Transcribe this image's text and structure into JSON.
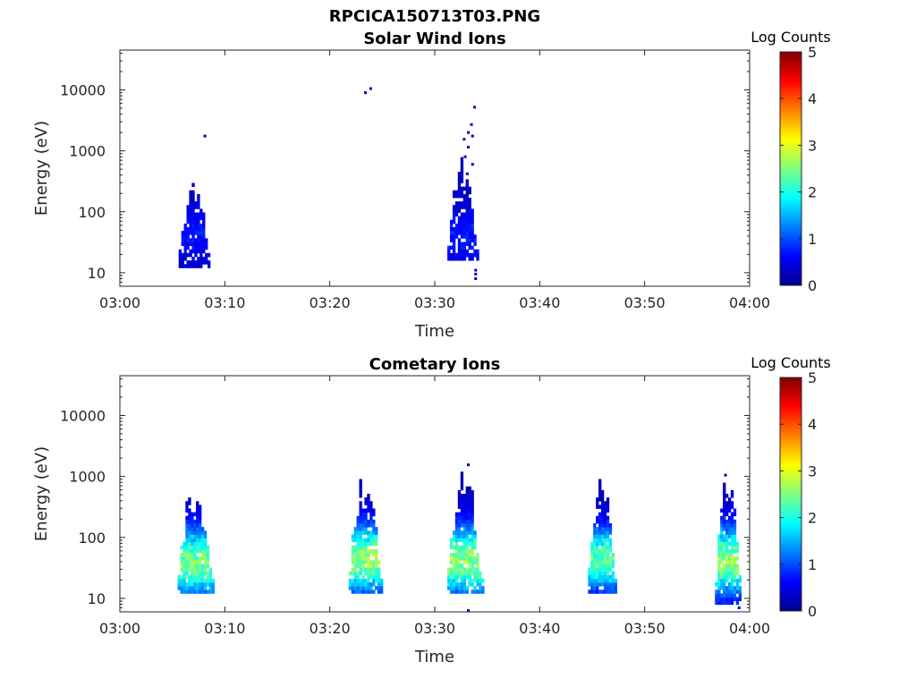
{
  "figure": {
    "title": "RPCICA150713T03.PNG"
  },
  "chart_data": [
    {
      "type": "heatmap",
      "title": "Solar Wind Ions",
      "xlabel": "Time",
      "ylabel": "Energy (eV)",
      "x_range": [
        "03:00",
        "04:00"
      ],
      "x_ticks": [
        "03:00",
        "03:10",
        "03:20",
        "03:30",
        "03:40",
        "03:50",
        "04:00"
      ],
      "y_scale": "log",
      "ylim": [
        6,
        45000
      ],
      "y_ticks": [
        10,
        100,
        1000,
        10000
      ],
      "y_tick_labels": [
        "10",
        "100",
        "1000",
        "10000"
      ],
      "colorbar": {
        "label": "Log Counts",
        "range": [
          0,
          5
        ],
        "ticks": [
          "0",
          "1",
          "2",
          "3",
          "4",
          "5"
        ],
        "colormap": "jet"
      },
      "bursts": [
        {
          "t0": 5.6,
          "t1": 8.6,
          "emin": 12,
          "emax": 280,
          "peak_e": 45,
          "level": 0.45,
          "spread": 0.45,
          "density": 0.85
        },
        {
          "t0": 31.2,
          "t1": 34.0,
          "emin": 17,
          "emax": 600,
          "peak_e": 40,
          "level": 0.45,
          "spread": 0.5,
          "density": 0.85
        }
      ],
      "sparse_points": [
        {
          "t": 8.1,
          "e": 1750,
          "v": 0.3
        },
        {
          "t": 23.4,
          "e": 9000,
          "v": 0.4
        },
        {
          "t": 23.9,
          "e": 10500,
          "v": 0.4
        },
        {
          "t": 33.8,
          "e": 5200,
          "v": 0.3
        },
        {
          "t": 33.5,
          "e": 2700,
          "v": 0.3
        },
        {
          "t": 33.2,
          "e": 2000,
          "v": 0.3
        },
        {
          "t": 33.6,
          "e": 1750,
          "v": 0.3
        },
        {
          "t": 32.8,
          "e": 1550,
          "v": 0.3
        },
        {
          "t": 33.2,
          "e": 1150,
          "v": 0.3
        },
        {
          "t": 32.9,
          "e": 800,
          "v": 0.3
        },
        {
          "t": 33.6,
          "e": 600,
          "v": 0.3
        },
        {
          "t": 32.6,
          "e": 500,
          "v": 0.3
        },
        {
          "t": 33.1,
          "e": 420,
          "v": 0.3
        },
        {
          "t": 33.9,
          "e": 8,
          "v": 0.3
        },
        {
          "t": 33.9,
          "e": 9.5,
          "v": 0.3
        },
        {
          "t": 33.9,
          "e": 11,
          "v": 0.3
        }
      ]
    },
    {
      "type": "heatmap",
      "title": "Cometary Ions",
      "xlabel": "Time",
      "ylabel": "Energy (eV)",
      "x_range": [
        "03:00",
        "04:00"
      ],
      "x_ticks": [
        "03:00",
        "03:10",
        "03:20",
        "03:30",
        "03:40",
        "03:50",
        "04:00"
      ],
      "y_scale": "log",
      "ylim": [
        6,
        45000
      ],
      "y_ticks": [
        10,
        100,
        1000,
        10000
      ],
      "y_tick_labels": [
        "10",
        "100",
        "1000",
        "10000"
      ],
      "colorbar": {
        "label": "Log Counts",
        "range": [
          0,
          5
        ],
        "ticks": [
          "0",
          "1",
          "2",
          "3",
          "4",
          "5"
        ],
        "colormap": "jet"
      },
      "bursts": [
        {
          "t0": 5.5,
          "t1": 8.9,
          "emin": 12,
          "emax": 560,
          "peak_e": 40,
          "level": 2.2,
          "spread": 0.55,
          "density": 0.93
        },
        {
          "t0": 21.8,
          "t1": 25.0,
          "emin": 12,
          "emax": 800,
          "peak_e": 45,
          "level": 2.3,
          "spread": 0.55,
          "density": 0.88
        },
        {
          "t0": 31.2,
          "t1": 34.5,
          "emin": 12,
          "emax": 1100,
          "peak_e": 42,
          "level": 2.3,
          "spread": 0.55,
          "density": 0.88
        },
        {
          "t0": 44.6,
          "t1": 47.2,
          "emin": 12,
          "emax": 900,
          "peak_e": 45,
          "level": 2.1,
          "spread": 0.5,
          "density": 0.9
        },
        {
          "t0": 56.7,
          "t1": 59.2,
          "emin": 8,
          "emax": 1000,
          "peak_e": 42,
          "level": 2.3,
          "spread": 0.55,
          "density": 0.88
        }
      ],
      "sparse_points": [
        {
          "t": 33.2,
          "e": 1550,
          "v": 0.3
        },
        {
          "t": 57.7,
          "e": 1050,
          "v": 0.3
        },
        {
          "t": 33.2,
          "e": 6.3,
          "v": 0.3
        },
        {
          "t": 59.0,
          "e": 7,
          "v": 0.5
        }
      ]
    }
  ]
}
